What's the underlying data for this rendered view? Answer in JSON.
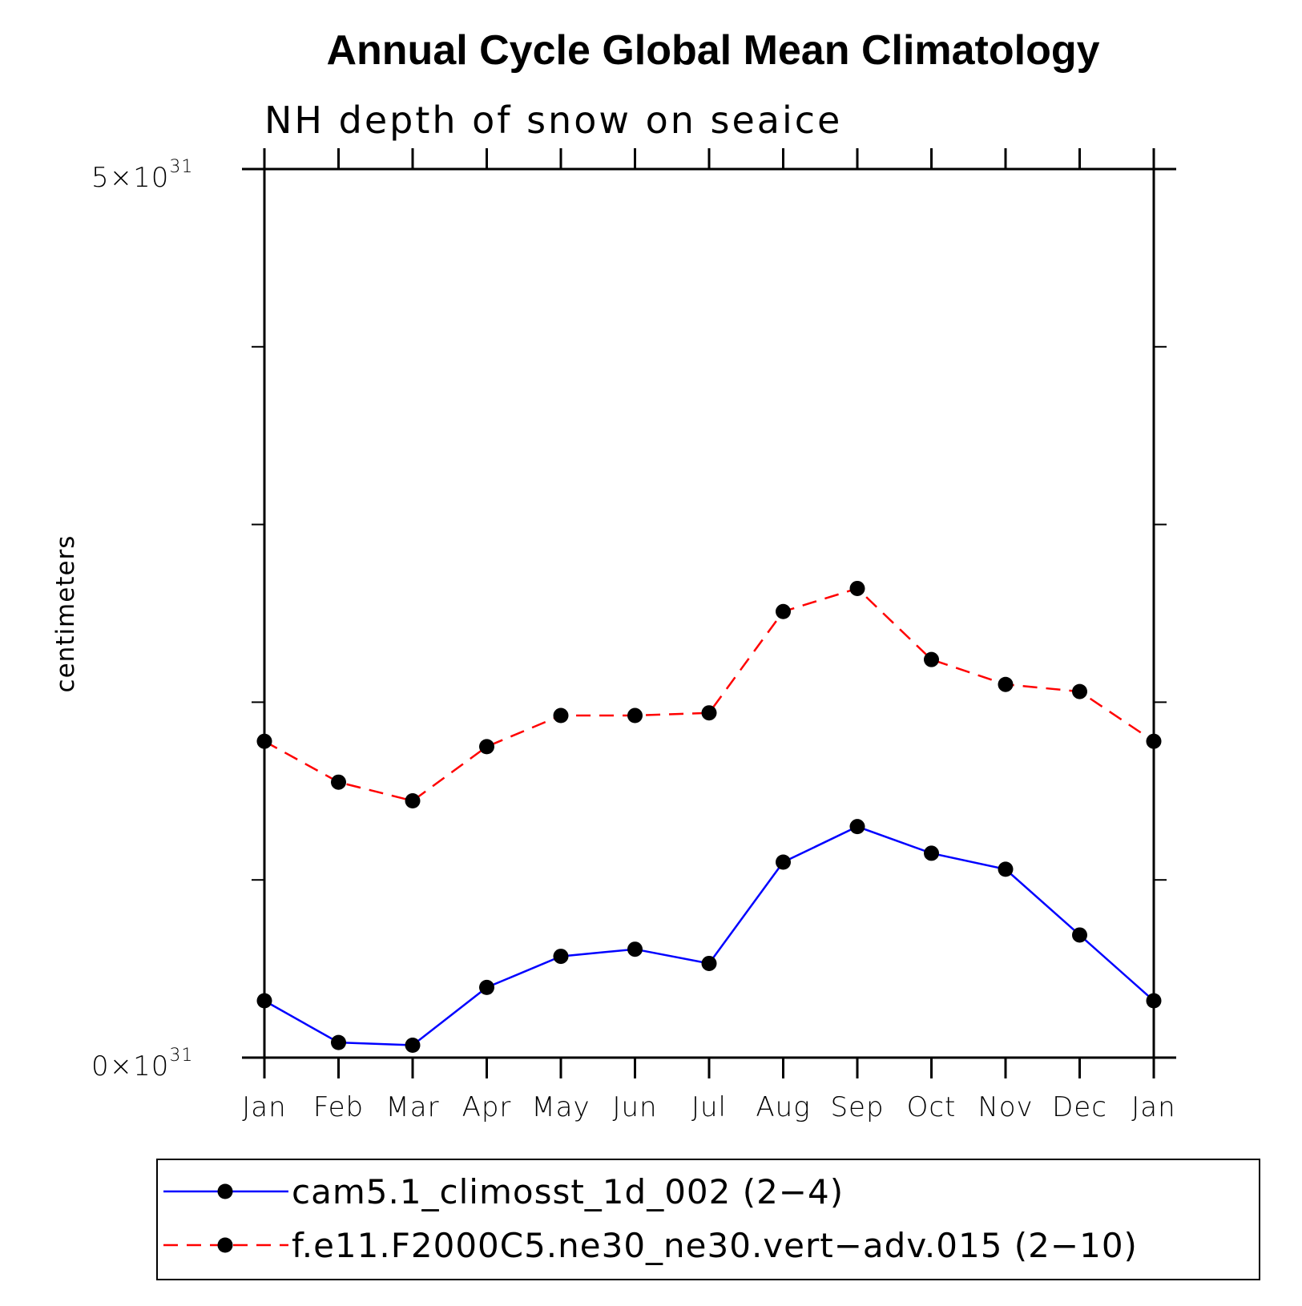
{
  "chart_data": {
    "type": "line",
    "title": "Annual Cycle Global Mean Climatology",
    "subtitle": "NH depth of snow on seaice",
    "ylabel": "centimeters",
    "xlabel": "",
    "categories": [
      "Jan",
      "Feb",
      "Mar",
      "Apr",
      "May",
      "Jun",
      "Jul",
      "Aug",
      "Sep",
      "Oct",
      "Nov",
      "Dec",
      "Jan"
    ],
    "ylim": [
      0,
      5
    ],
    "y_ticks": [
      {
        "value": 5,
        "mantissa": "5",
        "base": "×10",
        "exponent": "31"
      },
      {
        "value": 0,
        "mantissa": "0",
        "base": "×10",
        "exponent": "31"
      }
    ],
    "y_minor_ticks": [
      1,
      2,
      3,
      4
    ],
    "y_scale_exponent": 31,
    "series": [
      {
        "name": "cam5.1_climosst_1d_002 (2-4)",
        "color": "#0000ff",
        "dashed": false,
        "values": [
          0.32,
          0.085,
          0.07,
          0.395,
          0.57,
          0.61,
          0.53,
          1.1,
          1.3,
          1.15,
          1.06,
          0.69,
          0.32
        ]
      },
      {
        "name": "f.e11.F2000C5.ne30_ne30.vert-adv.015 (2-10)",
        "color": "#ff0000",
        "dashed": true,
        "values": [
          1.78,
          1.55,
          1.445,
          1.75,
          1.925,
          1.925,
          1.94,
          2.51,
          2.64,
          2.24,
          2.1,
          2.06,
          1.78
        ]
      }
    ],
    "marker_color": "#000000",
    "legend": {
      "position": "bottom",
      "entries": [
        "cam5.1_climosst_1d_002 (2−4)",
        "f.e11.F2000C5.ne30_ne30.vert−adv.015 (2−10)"
      ]
    }
  }
}
